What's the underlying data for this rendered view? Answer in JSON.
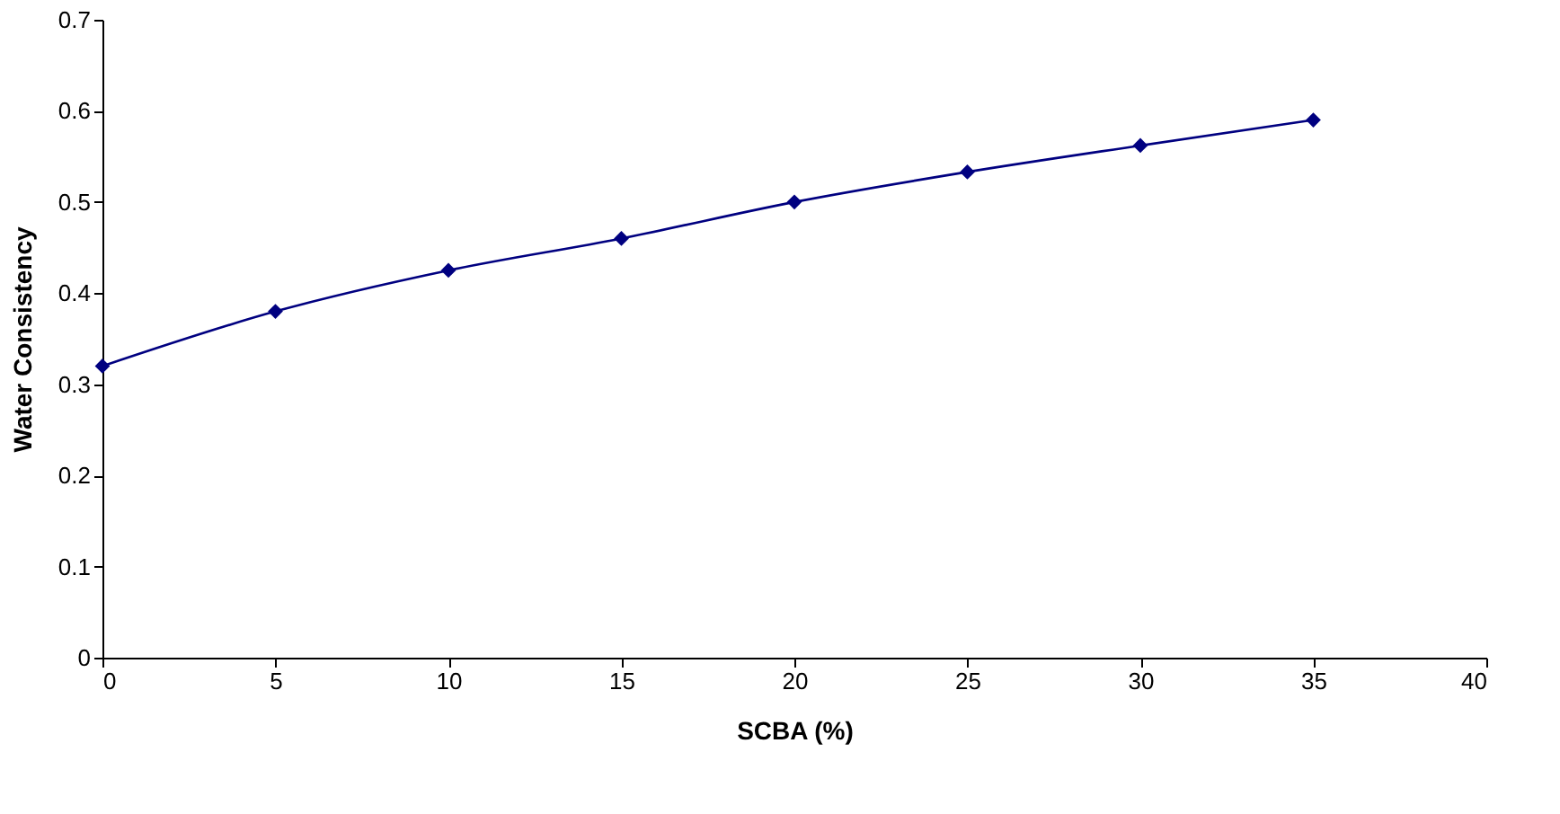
{
  "chart_data": {
    "type": "line",
    "xlabel": "SCBA (%)",
    "ylabel": "Water Consistency",
    "x": [
      0,
      5,
      10,
      15,
      20,
      25,
      30,
      35
    ],
    "series": [
      {
        "color": "#000080",
        "values": [
          0.32,
          0.38,
          0.425,
          0.46,
          0.5,
          0.533,
          0.562,
          0.59
        ]
      }
    ],
    "xlim": [
      0,
      40
    ],
    "xticks": [
      0,
      5,
      10,
      15,
      20,
      25,
      30,
      35,
      40
    ],
    "ylim": [
      0,
      0.7
    ],
    "yticks": [
      0,
      0.1,
      0.2,
      0.3,
      0.4,
      0.5,
      0.6,
      0.7
    ],
    "grid": false,
    "marker": "diamond",
    "line_style": "solid"
  }
}
